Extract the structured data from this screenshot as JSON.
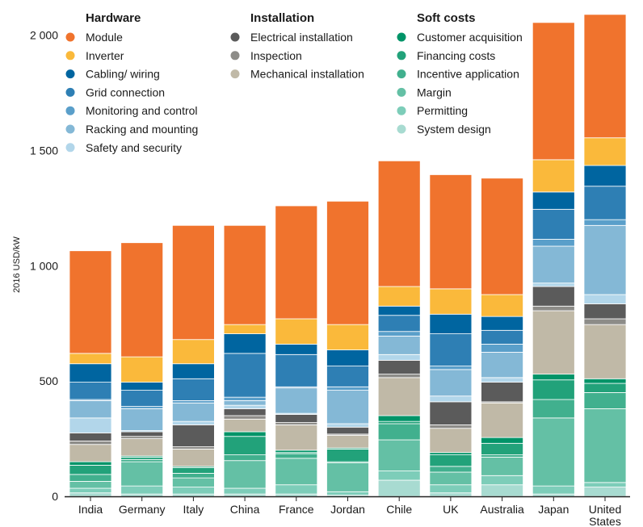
{
  "chart_data": {
    "type": "bar",
    "stacked": true,
    "ylabel": "2016 USD/kW",
    "ylim": [
      0,
      2100
    ],
    "y_ticks": [
      {
        "value": 0,
        "label": "0"
      },
      {
        "value": 500,
        "label": "500"
      },
      {
        "value": 1000,
        "label": "1 000"
      },
      {
        "value": 1500,
        "label": "1 500"
      },
      {
        "value": 2000,
        "label": "2 000"
      }
    ],
    "categories": [
      "India",
      "Germany",
      "Italy",
      "China",
      "France",
      "Jordan",
      "Chile",
      "UK",
      "Australia",
      "Japan",
      [
        "United",
        "States"
      ]
    ],
    "legend_groups": [
      {
        "title": "Hardware",
        "series": [
          "Module",
          "Inverter",
          "Cabling/ wiring",
          "Grid connection",
          "Monitoring and control",
          "Racking and mounting",
          "Safety and security"
        ]
      },
      {
        "title": "Installation",
        "series": [
          "Electrical installation",
          "Inspection",
          "Mechanical installation"
        ]
      },
      {
        "title": "Soft costs",
        "series": [
          "Customer acquisition",
          "Financing costs",
          "Incentive application",
          "Margin",
          "Permitting",
          "System design"
        ]
      }
    ],
    "series": [
      {
        "name": "System design",
        "color": "#a8dbd1",
        "values": [
          15,
          10,
          10,
          10,
          10,
          5,
          70,
          15,
          50,
          10,
          40
        ]
      },
      {
        "name": "Permitting",
        "color": "#7dcdb9",
        "values": [
          20,
          35,
          30,
          25,
          40,
          15,
          40,
          35,
          40,
          35,
          20
        ]
      },
      {
        "name": "Margin",
        "color": "#64c0a5",
        "values": [
          30,
          105,
          40,
          120,
          115,
          125,
          135,
          55,
          80,
          295,
          320
        ]
      },
      {
        "name": "Incentive application",
        "color": "#41b08e",
        "values": [
          30,
          10,
          20,
          25,
          20,
          5,
          70,
          25,
          10,
          80,
          70
        ]
      },
      {
        "name": "Financing costs",
        "color": "#22a27a",
        "values": [
          40,
          10,
          25,
          80,
          5,
          55,
          10,
          50,
          50,
          85,
          40
        ]
      },
      {
        "name": "Customer acquisition",
        "color": "#009468",
        "values": [
          15,
          5,
          5,
          20,
          10,
          5,
          25,
          10,
          25,
          25,
          20
        ]
      },
      {
        "name": "Mechanical installation",
        "color": "#c0b9a7",
        "values": [
          75,
          75,
          75,
          55,
          110,
          55,
          165,
          105,
          150,
          275,
          235
        ]
      },
      {
        "name": "Inspection",
        "color": "#8d8c88",
        "values": [
          15,
          10,
          10,
          15,
          10,
          5,
          15,
          15,
          5,
          20,
          25
        ]
      },
      {
        "name": "Electrical installation",
        "color": "#5b5b5b",
        "values": [
          35,
          20,
          95,
          30,
          35,
          30,
          60,
          100,
          85,
          85,
          65
        ]
      },
      {
        "name": "Safety and security",
        "color": "#b2d6ea",
        "values": [
          65,
          5,
          15,
          15,
          5,
          15,
          25,
          25,
          20,
          15,
          40
        ]
      },
      {
        "name": "Racking and mounting",
        "color": "#84b8d6",
        "values": [
          75,
          95,
          80,
          20,
          110,
          145,
          80,
          115,
          110,
          160,
          300
        ]
      },
      {
        "name": "Monitoring and control",
        "color": "#5a9fca",
        "values": [
          5,
          10,
          10,
          15,
          5,
          15,
          20,
          15,
          35,
          30,
          25
        ]
      },
      {
        "name": "Grid connection",
        "color": "#2e7fb4",
        "values": [
          75,
          70,
          95,
          190,
          140,
          90,
          70,
          140,
          60,
          130,
          145
        ]
      },
      {
        "name": "Cabling/ wiring",
        "color": "#0065a0",
        "values": [
          80,
          35,
          65,
          85,
          45,
          70,
          40,
          85,
          60,
          75,
          90
        ]
      },
      {
        "name": "Inverter",
        "color": "#fab93b",
        "values": [
          45,
          110,
          105,
          40,
          110,
          110,
          85,
          110,
          95,
          140,
          120
        ]
      },
      {
        "name": "Module",
        "color": "#f0732d",
        "values": [
          445,
          495,
          495,
          430,
          490,
          535,
          545,
          495,
          505,
          595,
          535
        ]
      }
    ]
  }
}
